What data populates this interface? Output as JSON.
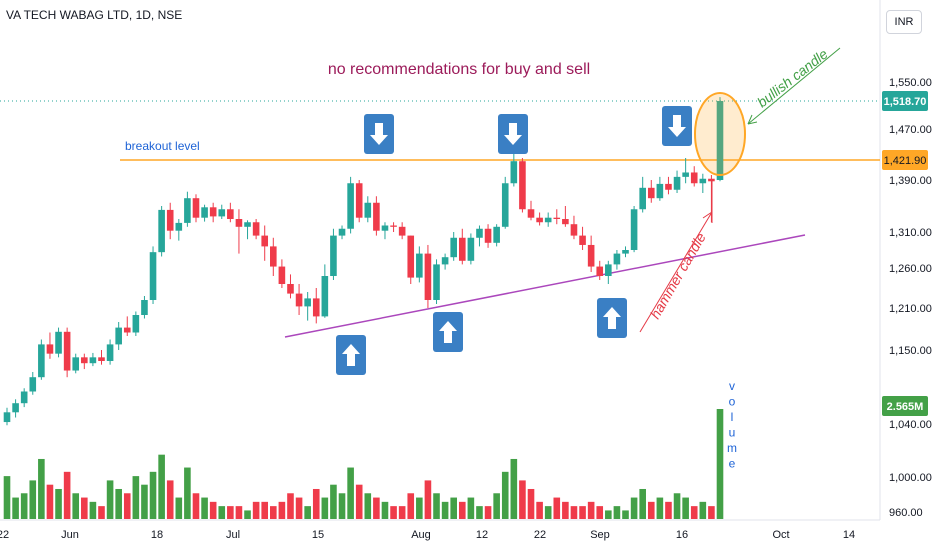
{
  "header": {
    "symbol": "VA TECH WABAG LTD, 1D, NSE",
    "currency": "INR"
  },
  "annotations": {
    "headline": "no recommendations for buy and sell",
    "breakout_label": "breakout level",
    "bullish_label": "bullish candle",
    "hammer_label": "hammer candle",
    "volume_label": "volume"
  },
  "colors": {
    "up": "#26a69a",
    "up_volume": "#43a047",
    "down": "#ef3b4a",
    "breakout_line": "#ffa726",
    "trend_line": "#ab47bc",
    "arrow_box": "#3a7fc4",
    "headline": "#9c1b5a",
    "bullish_text": "#43a047",
    "hammer_text": "#e53945"
  },
  "chart_data": {
    "type": "candlestick",
    "x_axis_labels": [
      "22",
      "Jun",
      "18",
      "Jul",
      "15",
      "Aug",
      "12",
      "22",
      "Sep",
      "16",
      "Oct",
      "14"
    ],
    "price_axis_ticks": [
      1550,
      1470,
      1390,
      1310,
      1260,
      1210,
      1150,
      1040,
      1000,
      960
    ],
    "price_axis_tick_labels": [
      "1,550.00",
      "1,470.00",
      "1,390.00",
      "1,310.00",
      "1,260.00",
      "1,210.00",
      "1,150.00",
      "1,040.00",
      "1,000.00",
      "960.00"
    ],
    "last_price": 1518.7,
    "last_price_label": "1,518.70",
    "breakout_level": 1421.9,
    "breakout_level_label": "1,421.90",
    "last_volume_label": "2.565M",
    "candles": [
      [
        1043,
        1065,
        1038,
        1058,
        1.0
      ],
      [
        1058,
        1078,
        1050,
        1072,
        0.5
      ],
      [
        1072,
        1095,
        1066,
        1090,
        0.6
      ],
      [
        1090,
        1120,
        1085,
        1112,
        0.9
      ],
      [
        1112,
        1165,
        1108,
        1158,
        1.4
      ],
      [
        1158,
        1175,
        1138,
        1145,
        0.8
      ],
      [
        1145,
        1182,
        1140,
        1176,
        0.7
      ],
      [
        1176,
        1182,
        1112,
        1122,
        1.1
      ],
      [
        1122,
        1145,
        1118,
        1140,
        0.6
      ],
      [
        1140,
        1145,
        1124,
        1132,
        0.5
      ],
      [
        1132,
        1146,
        1128,
        1140,
        0.4
      ],
      [
        1140,
        1150,
        1130,
        1135,
        0.3
      ],
      [
        1135,
        1165,
        1130,
        1158,
        0.9
      ],
      [
        1158,
        1190,
        1150,
        1182,
        0.7
      ],
      [
        1182,
        1198,
        1170,
        1175,
        0.6
      ],
      [
        1175,
        1205,
        1170,
        1200,
        1.0
      ],
      [
        1200,
        1225,
        1195,
        1220,
        0.8
      ],
      [
        1220,
        1290,
        1215,
        1282,
        1.1
      ],
      [
        1282,
        1350,
        1276,
        1344,
        1.5
      ],
      [
        1344,
        1355,
        1300,
        1312,
        0.9
      ],
      [
        1312,
        1330,
        1298,
        1324,
        0.5
      ],
      [
        1324,
        1372,
        1318,
        1362,
        1.2
      ],
      [
        1362,
        1368,
        1325,
        1332,
        0.6
      ],
      [
        1332,
        1352,
        1326,
        1348,
        0.5
      ],
      [
        1348,
        1355,
        1325,
        1334,
        0.4
      ],
      [
        1334,
        1352,
        1330,
        1345,
        0.3
      ],
      [
        1345,
        1355,
        1325,
        1330,
        0.3
      ],
      [
        1330,
        1345,
        1280,
        1318,
        0.3
      ],
      [
        1318,
        1328,
        1300,
        1325,
        0.2
      ],
      [
        1325,
        1330,
        1300,
        1305,
        0.4
      ],
      [
        1305,
        1320,
        1270,
        1290,
        0.4
      ],
      [
        1290,
        1302,
        1250,
        1262,
        0.3
      ],
      [
        1262,
        1272,
        1235,
        1240,
        0.4
      ],
      [
        1240,
        1252,
        1222,
        1228,
        0.6
      ],
      [
        1228,
        1240,
        1200,
        1212,
        0.5
      ],
      [
        1212,
        1230,
        1192,
        1222,
        0.3
      ],
      [
        1222,
        1235,
        1188,
        1198,
        0.7
      ],
      [
        1198,
        1265,
        1196,
        1250,
        0.5
      ],
      [
        1250,
        1315,
        1245,
        1305,
        0.8
      ],
      [
        1305,
        1320,
        1300,
        1315,
        0.6
      ],
      [
        1315,
        1395,
        1308,
        1385,
        1.2
      ],
      [
        1385,
        1390,
        1325,
        1332,
        0.8
      ],
      [
        1332,
        1365,
        1325,
        1355,
        0.6
      ],
      [
        1355,
        1365,
        1305,
        1312,
        0.5
      ],
      [
        1312,
        1325,
        1300,
        1320,
        0.4
      ],
      [
        1320,
        1325,
        1310,
        1318,
        0.3
      ],
      [
        1318,
        1325,
        1300,
        1305,
        0.3
      ],
      [
        1305,
        1305,
        1240,
        1248,
        0.6
      ],
      [
        1248,
        1290,
        1242,
        1280,
        0.5
      ],
      [
        1280,
        1292,
        1210,
        1220,
        0.9
      ],
      [
        1220,
        1272,
        1215,
        1265,
        0.6
      ],
      [
        1265,
        1280,
        1258,
        1275,
        0.4
      ],
      [
        1275,
        1310,
        1270,
        1302,
        0.5
      ],
      [
        1302,
        1315,
        1265,
        1270,
        0.4
      ],
      [
        1270,
        1308,
        1265,
        1302,
        0.5
      ],
      [
        1302,
        1320,
        1290,
        1315,
        0.3
      ],
      [
        1315,
        1322,
        1288,
        1295,
        0.3
      ],
      [
        1295,
        1322,
        1290,
        1318,
        0.6
      ],
      [
        1318,
        1395,
        1315,
        1385,
        1.1
      ],
      [
        1385,
        1440,
        1380,
        1420,
        1.4
      ],
      [
        1420,
        1425,
        1340,
        1345,
        0.9
      ],
      [
        1345,
        1358,
        1328,
        1332,
        0.7
      ],
      [
        1332,
        1340,
        1320,
        1325,
        0.4
      ],
      [
        1325,
        1340,
        1318,
        1332,
        0.3
      ],
      [
        1332,
        1345,
        1322,
        1330,
        0.5
      ],
      [
        1330,
        1350,
        1318,
        1322,
        0.4
      ],
      [
        1322,
        1335,
        1300,
        1305,
        0.3
      ],
      [
        1305,
        1318,
        1285,
        1292,
        0.3
      ],
      [
        1292,
        1305,
        1255,
        1262,
        0.4
      ],
      [
        1262,
        1270,
        1245,
        1250,
        0.3
      ],
      [
        1250,
        1270,
        1240,
        1265,
        0.2
      ],
      [
        1265,
        1285,
        1258,
        1280,
        0.3
      ],
      [
        1280,
        1290,
        1275,
        1285,
        0.2
      ],
      [
        1285,
        1350,
        1282,
        1345,
        0.5
      ],
      [
        1345,
        1395,
        1340,
        1378,
        0.7
      ],
      [
        1378,
        1390,
        1355,
        1362,
        0.4
      ],
      [
        1362,
        1395,
        1358,
        1384,
        0.5
      ],
      [
        1384,
        1395,
        1368,
        1375,
        0.4
      ],
      [
        1375,
        1405,
        1370,
        1395,
        0.6
      ],
      [
        1395,
        1425,
        1385,
        1402,
        0.5
      ],
      [
        1402,
        1412,
        1380,
        1385,
        0.3
      ],
      [
        1385,
        1400,
        1370,
        1392,
        0.4
      ],
      [
        1392,
        1398,
        1325,
        1388,
        0.3
      ],
      [
        1390,
        1525,
        1388,
        1518.7,
        2.565
      ]
    ]
  }
}
